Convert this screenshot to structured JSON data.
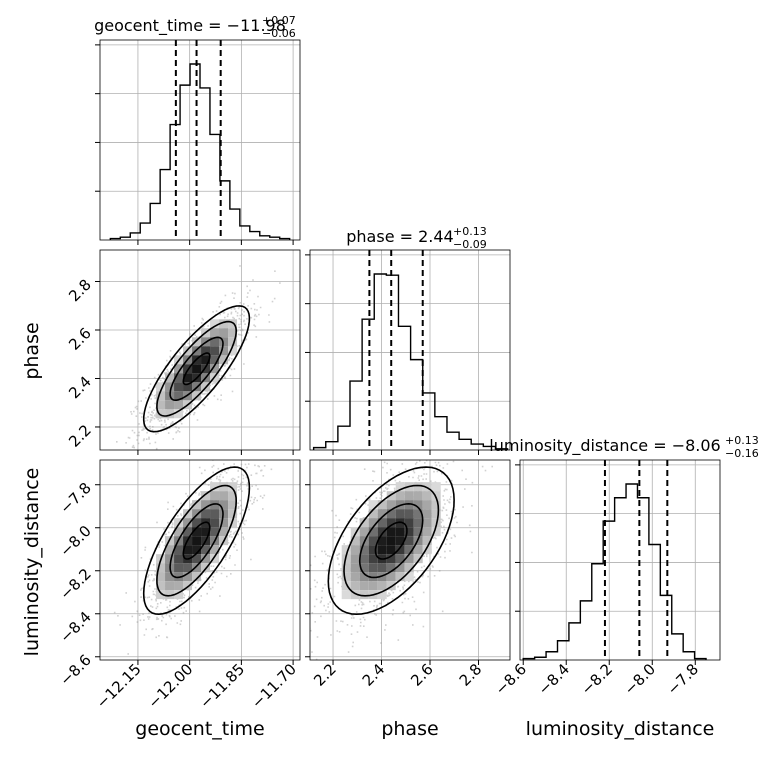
{
  "chart_data": {
    "type": "corner",
    "parameters": [
      "geocent_time",
      "phase",
      "luminosity_distance"
    ],
    "titles": [
      {
        "param": "geocent_time",
        "prefix": "geocent_time = ",
        "median": "−11.98",
        "upper": "+0.07",
        "lower": "−0.06"
      },
      {
        "param": "phase",
        "prefix": "phase = ",
        "median": "2.44",
        "upper": "+0.13",
        "lower": "−0.09"
      },
      {
        "param": "luminosity_distance",
        "prefix": "luminosity_distance = ",
        "median": "−8.06",
        "upper": "+0.13",
        "lower": "−0.16"
      }
    ],
    "axis_ranges": {
      "geocent_time": [
        -12.26,
        -11.68
      ],
      "phase": [
        2.105,
        2.93
      ],
      "luminosity_distance": [
        -8.615,
        -7.685
      ]
    },
    "ticks": {
      "geocent_time": {
        "values": [
          -12.15,
          -12.0,
          -11.85,
          -11.7
        ],
        "labels": [
          "−12.15",
          "−12.00",
          "−11.85",
          "−11.70"
        ]
      },
      "phase": {
        "values": [
          2.2,
          2.4,
          2.6,
          2.8
        ],
        "labels": [
          "2.2",
          "2.4",
          "2.6",
          "2.8"
        ]
      },
      "luminosity_distance": {
        "values": [
          -8.6,
          -8.4,
          -8.2,
          -8.0,
          -7.8
        ],
        "labels": [
          "−8.6",
          "−8.4",
          "−8.2",
          "−8.0",
          "−7.8"
        ]
      }
    },
    "quantiles": {
      "geocent_time": [
        -12.04,
        -11.98,
        -11.91
      ],
      "phase": [
        2.35,
        2.44,
        2.57
      ],
      "luminosity_distance": [
        -8.22,
        -8.06,
        -7.93
      ]
    },
    "histograms": {
      "geocent_time": {
        "edges": [
          -12.23,
          -11.71
        ],
        "counts": [
          1,
          2,
          5,
          12,
          26,
          50,
          82,
          110,
          125,
          108,
          75,
          42,
          22,
          10,
          6,
          3,
          2,
          1
        ]
      },
      "phase": {
        "edges": [
          2.12,
          2.92
        ],
        "counts": [
          2,
          7,
          20,
          58,
          110,
          148,
          147,
          104,
          76,
          48,
          28,
          15,
          9,
          5,
          3,
          1
        ]
      },
      "luminosity_distance": {
        "edges": [
          -8.6,
          -7.75
        ],
        "counts": [
          1,
          2,
          6,
          14,
          27,
          43,
          70,
          101,
          118,
          128,
          118,
          84,
          47,
          19,
          6,
          1
        ]
      }
    },
    "correlations": {
      "phase_vs_geocent_time": 0.8,
      "luminosity_distance_vs_geocent_time": 0.72,
      "luminosity_distance_vs_phase": 0.55
    },
    "grid": true,
    "colors": {
      "line": "#000000",
      "scatter": "#9a9a9a",
      "grid": "#b0b0b0"
    }
  }
}
